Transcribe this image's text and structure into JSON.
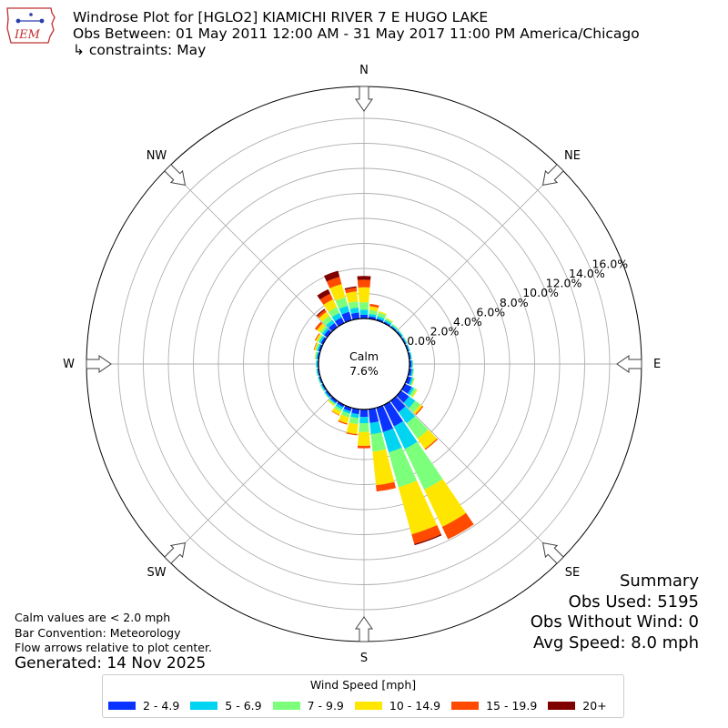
{
  "header": {
    "logo_text": "IEM",
    "title": "Windrose Plot for [HGLO2] KIAMICHI RIVER 7 E HUGO LAKE",
    "subtitle": "Obs Between: 01 May 2011 12:00 AM - 31 May 2017 11:00 PM America/Chicago",
    "constraints": "↳ constraints: May"
  },
  "summary": {
    "heading": "Summary",
    "obs_used": "Obs Used: 5195",
    "obs_without_wind": "Obs Without Wind: 0",
    "avg_speed": "Avg Speed: 8.0 mph"
  },
  "footnotes": {
    "calm_note": "Calm values are < 2.0 mph",
    "bar_convention": "Bar Convention: Meteorology",
    "flow_note": "Flow arrows relative to plot center.",
    "generated": "Generated: 14 Nov 2025"
  },
  "center": {
    "calm_label": "Calm",
    "calm_value": "7.6%"
  },
  "colors": {
    "bins": [
      "#0a33ff",
      "#00d4f0",
      "#7cff7a",
      "#ffe600",
      "#ff4a00",
      "#800000"
    ],
    "grid": "#b0b0b0",
    "axis": "#000000"
  },
  "chart_data": {
    "type": "windrose",
    "legend_title": "Wind Speed [mph]",
    "speed_bins": [
      "2 - 4.9",
      "5 - 6.9",
      "7 - 9.9",
      "10 - 14.9",
      "15 - 19.9",
      "20+"
    ],
    "radial_ticks": [
      "0.0%",
      "2.0%",
      "4.0%",
      "6.0%",
      "8.0%",
      "10.0%",
      "12.0%",
      "14.0%",
      "16.0%"
    ],
    "radial_range_percent": [
      0,
      16
    ],
    "calm_percent": 7.6,
    "cardinal_labels": [
      "N",
      "NE",
      "E",
      "SE",
      "S",
      "SW",
      "W",
      "NW"
    ],
    "sectors": [
      {
        "dir": 0,
        "pct": [
          0.3,
          0.4,
          0.6,
          1.2,
          0.6,
          0.3
        ]
      },
      {
        "dir": 10,
        "pct": [
          0.2,
          0.2,
          0.3,
          0.3,
          0.2,
          0
        ]
      },
      {
        "dir": 20,
        "pct": [
          0.15,
          0.2,
          0.3,
          0.1,
          0,
          0
        ]
      },
      {
        "dir": 30,
        "pct": [
          0.12,
          0.15,
          0.15,
          0.05,
          0,
          0
        ]
      },
      {
        "dir": 40,
        "pct": [
          0.1,
          0.1,
          0.1,
          0,
          0,
          0
        ]
      },
      {
        "dir": 50,
        "pct": [
          0.1,
          0.1,
          0.05,
          0,
          0,
          0
        ]
      },
      {
        "dir": 60,
        "pct": [
          0.1,
          0.08,
          0.04,
          0,
          0,
          0
        ]
      },
      {
        "dir": 70,
        "pct": [
          0.1,
          0.08,
          0.02,
          0,
          0,
          0
        ]
      },
      {
        "dir": 80,
        "pct": [
          0.12,
          0.08,
          0.02,
          0,
          0,
          0
        ]
      },
      {
        "dir": 90,
        "pct": [
          0.15,
          0.1,
          0.04,
          0,
          0,
          0
        ]
      },
      {
        "dir": 100,
        "pct": [
          0.2,
          0.12,
          0.05,
          0.02,
          0,
          0
        ]
      },
      {
        "dir": 110,
        "pct": [
          0.3,
          0.15,
          0.08,
          0.05,
          0,
          0
        ]
      },
      {
        "dir": 120,
        "pct": [
          0.6,
          0.2,
          0.2,
          0.1,
          0,
          0
        ]
      },
      {
        "dir": 130,
        "pct": [
          0.8,
          0.6,
          0.5,
          0.2,
          0.1,
          0
        ]
      },
      {
        "dir": 140,
        "pct": [
          1.1,
          1.1,
          1.5,
          1.0,
          0.1,
          0
        ]
      },
      {
        "dir": 150,
        "pct": [
          1.9,
          2.0,
          3.6,
          3.3,
          1.1,
          0
        ]
      },
      {
        "dir": 160,
        "pct": [
          2.0,
          1.7,
          2.9,
          3.9,
          0.8,
          0.1
        ]
      },
      {
        "dir": 170,
        "pct": [
          1.1,
          0.9,
          1.4,
          2.7,
          0.5,
          0
        ]
      },
      {
        "dir": 180,
        "pct": [
          0.6,
          0.5,
          0.7,
          1.1,
          0.2,
          0
        ]
      },
      {
        "dir": 190,
        "pct": [
          0.4,
          0.3,
          0.5,
          0.8,
          0.1,
          0
        ]
      },
      {
        "dir": 200,
        "pct": [
          0.3,
          0.2,
          0.3,
          0.5,
          0.1,
          0
        ]
      },
      {
        "dir": 210,
        "pct": [
          0.2,
          0.2,
          0.2,
          0.3,
          0.05,
          0
        ]
      },
      {
        "dir": 220,
        "pct": [
          0.2,
          0.1,
          0.1,
          0.1,
          0,
          0
        ]
      },
      {
        "dir": 230,
        "pct": [
          0.15,
          0.1,
          0.05,
          0,
          0,
          0
        ]
      },
      {
        "dir": 240,
        "pct": [
          0.1,
          0.1,
          0.05,
          0,
          0,
          0
        ]
      },
      {
        "dir": 250,
        "pct": [
          0.1,
          0.08,
          0.04,
          0,
          0,
          0
        ]
      },
      {
        "dir": 260,
        "pct": [
          0.1,
          0.08,
          0.04,
          0,
          0,
          0
        ]
      },
      {
        "dir": 270,
        "pct": [
          0.1,
          0.08,
          0.05,
          0,
          0,
          0
        ]
      },
      {
        "dir": 280,
        "pct": [
          0.12,
          0.1,
          0.08,
          0.04,
          0,
          0
        ]
      },
      {
        "dir": 290,
        "pct": [
          0.15,
          0.12,
          0.12,
          0.1,
          0.05,
          0
        ]
      },
      {
        "dir": 300,
        "pct": [
          0.2,
          0.15,
          0.15,
          0.15,
          0.08,
          0
        ]
      },
      {
        "dir": 310,
        "pct": [
          0.3,
          0.2,
          0.2,
          0.3,
          0.2,
          0
        ]
      },
      {
        "dir": 320,
        "pct": [
          0.4,
          0.3,
          0.4,
          0.4,
          0.2,
          0.1
        ]
      },
      {
        "dir": 330,
        "pct": [
          0.5,
          0.4,
          0.5,
          0.7,
          0.5,
          0.4
        ]
      },
      {
        "dir": 340,
        "pct": [
          0.7,
          0.5,
          0.7,
          1.1,
          0.6,
          0.5
        ]
      },
      {
        "dir": 350,
        "pct": [
          0.5,
          0.4,
          0.5,
          0.8,
          0.3,
          0.1
        ]
      }
    ]
  }
}
